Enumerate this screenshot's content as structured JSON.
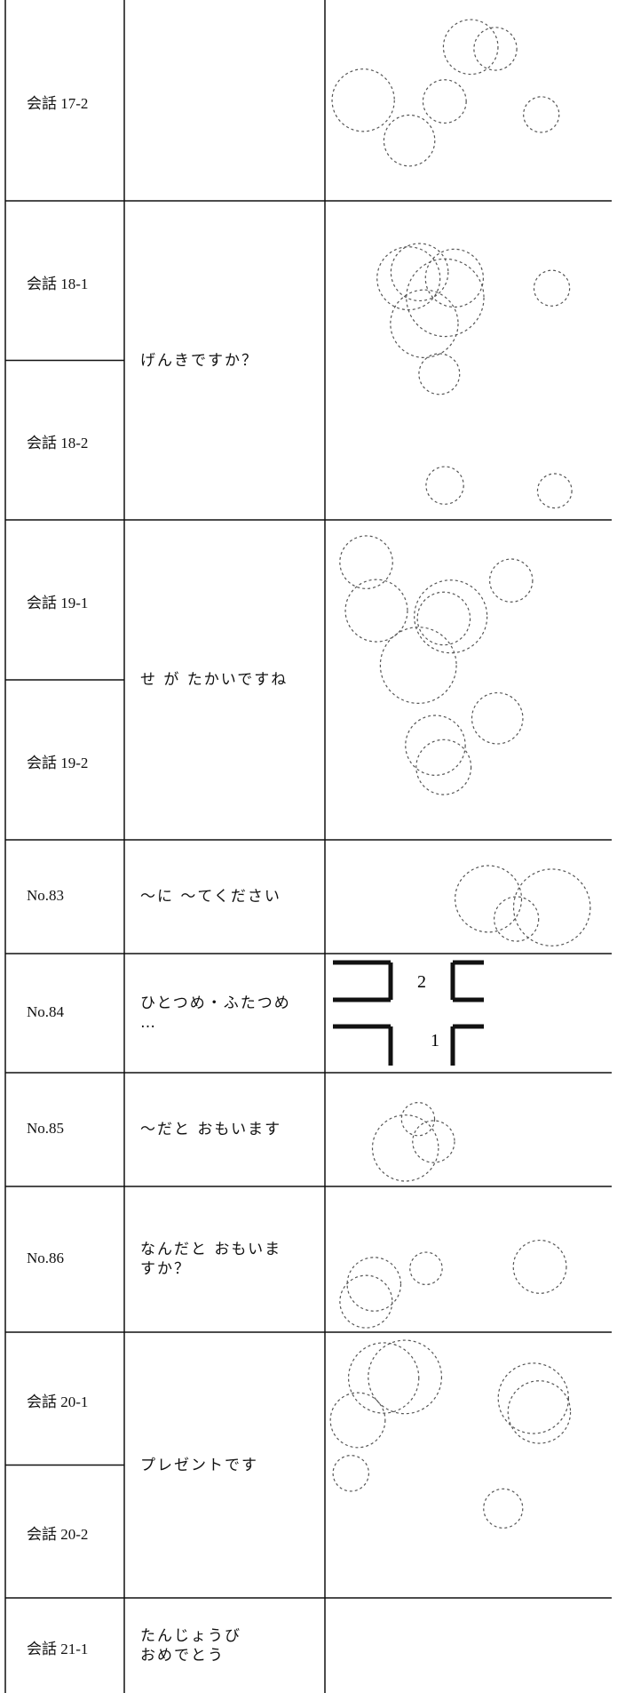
{
  "rows": [
    {
      "labels": [
        "会話 17-2"
      ]
    },
    {
      "labels": [
        "会話 18-1",
        "会話 18-2"
      ],
      "text": [
        "げんきですか？"
      ]
    },
    {
      "labels": [
        "会話 19-1",
        "会話 19-2"
      ],
      "text": [
        "せ が たかいですね"
      ]
    },
    {
      "labels": [
        "No.83"
      ],
      "text": [
        "～に ～てください"
      ]
    },
    {
      "labels": [
        "No.84"
      ],
      "text": [
        "ひとつめ・ふたつめ",
        "…"
      ],
      "map_labels": [
        "2",
        "1"
      ]
    },
    {
      "labels": [
        "No.85"
      ],
      "text": [
        "～だと おもいます"
      ]
    },
    {
      "labels": [
        "No.86"
      ],
      "text": [
        "なんだと おもいま",
        "すか？"
      ]
    },
    {
      "labels": [
        "会話 20-1",
        "会話 20-2"
      ],
      "text": [
        "プレゼントです"
      ]
    },
    {
      "labels": [
        "会話 21-1"
      ],
      "text": [
        "たんじょうび",
        "おめでとう"
      ]
    }
  ]
}
